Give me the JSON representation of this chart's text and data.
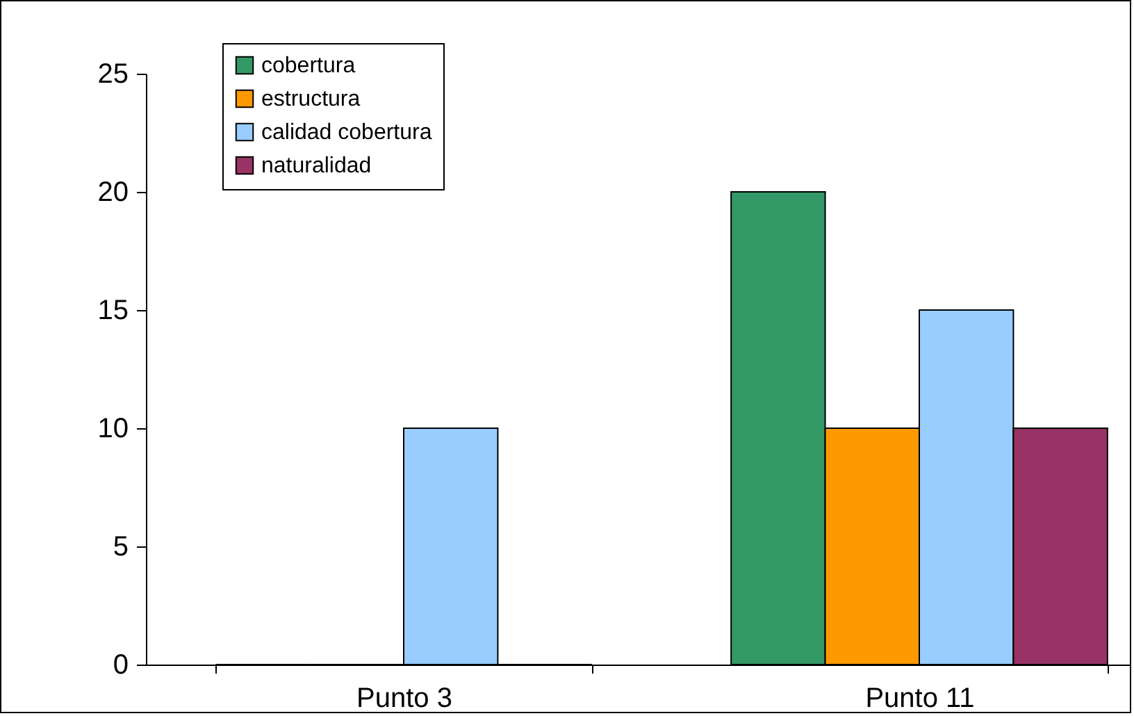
{
  "chart_data": {
    "type": "bar",
    "categories": [
      "Punto 3",
      "Punto 11"
    ],
    "series": [
      {
        "name": "cobertura",
        "color": "#339966",
        "values": [
          0,
          20
        ]
      },
      {
        "name": "estructura",
        "color": "#ff9900",
        "values": [
          0,
          10
        ]
      },
      {
        "name": "calidad cobertura",
        "color": "#99ccff",
        "values": [
          10,
          15
        ]
      },
      {
        "name": "naturalidad",
        "color": "#993366",
        "values": [
          0,
          10
        ]
      }
    ],
    "ylim": [
      0,
      25
    ],
    "yticks": [
      0,
      5,
      10,
      15,
      20,
      25
    ],
    "legend": "top left"
  }
}
